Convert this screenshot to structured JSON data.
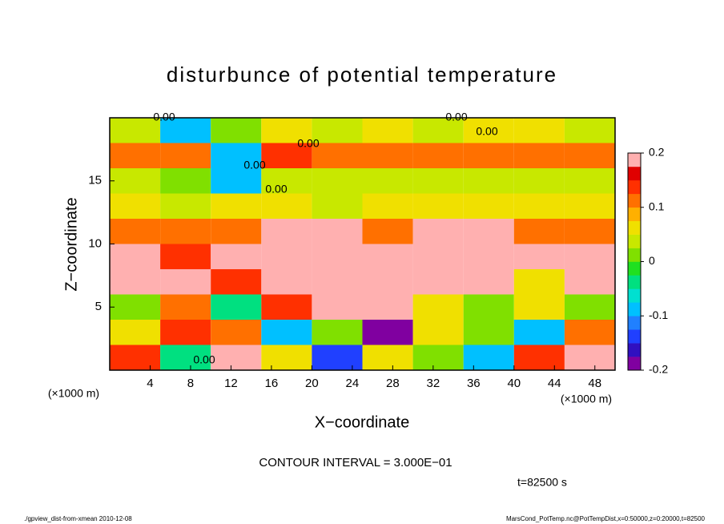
{
  "chart_data": {
    "type": "heatmap",
    "title": "disturbunce of potential temperature",
    "xlabel": "X−coordinate",
    "ylabel": "Z−coordinate",
    "xunit": "(×1000 m)",
    "xunit2": "(×1000 m)",
    "contour_interval": "CONTOUR INTERVAL = 3.000E−01",
    "time": "t=82500 s",
    "footer_left": "./gpview_dist-from-xmean  2010-12-08",
    "footer_right": "MarsCond_PotTemp.nc@PotTempDist,x=0:50000,z=0:20000,t=82500",
    "annotations": [
      "0.00",
      "0.00",
      "0.00",
      "0.00",
      "0.00",
      "0.00",
      "0.00"
    ],
    "x": [
      2.5,
      7.5,
      12.5,
      17.5,
      22.5,
      27.5,
      32.5,
      37.5,
      42.5,
      47.5
    ],
    "y": [
      1,
      3,
      5,
      7,
      9,
      11,
      13,
      15,
      17,
      19
    ],
    "values": [
      [
        0.15,
        -0.05,
        0.2,
        0.05,
        -0.15,
        0.05,
        0.0,
        -0.1,
        0.15,
        0.2
      ],
      [
        0.05,
        0.15,
        0.1,
        -0.1,
        0.0,
        -0.2,
        0.05,
        0.0,
        -0.1,
        0.1
      ],
      [
        0.0,
        0.1,
        -0.05,
        0.15,
        0.2,
        0.2,
        0.05,
        0.0,
        0.05,
        0.0
      ],
      [
        0.2,
        0.2,
        0.15,
        0.2,
        0.2,
        0.2,
        0.2,
        0.2,
        0.05,
        0.2
      ],
      [
        0.2,
        0.15,
        0.2,
        0.2,
        0.2,
        0.2,
        0.2,
        0.2,
        0.2,
        0.2
      ],
      [
        0.12,
        0.12,
        0.1,
        0.2,
        0.2,
        0.12,
        0.2,
        0.2,
        0.12,
        0.12
      ],
      [
        0.05,
        0.03,
        0.05,
        0.05,
        0.03,
        0.05,
        0.05,
        0.05,
        0.05,
        0.05
      ],
      [
        0.03,
        0.0,
        -0.08,
        0.03,
        0.03,
        0.03,
        0.03,
        0.03,
        0.03,
        0.03
      ],
      [
        0.12,
        0.1,
        -0.1,
        0.15,
        0.1,
        0.12,
        0.12,
        0.12,
        0.12,
        0.12
      ],
      [
        0.03,
        -0.1,
        0.0,
        0.05,
        0.03,
        0.05,
        0.03,
        0.05,
        0.05,
        0.03
      ]
    ],
    "xlim": [
      0,
      50
    ],
    "ylim": [
      0,
      20
    ],
    "xticks": [
      4,
      8,
      12,
      16,
      20,
      24,
      28,
      32,
      36,
      40,
      44,
      48
    ],
    "yticks": [
      5,
      10,
      15
    ],
    "clim": [
      -0.2,
      0.2
    ],
    "cticks": [
      -0.2,
      -0.1,
      0,
      0.1,
      0.2
    ],
    "colors": [
      "#8000a0",
      "#3010c0",
      "#2040ff",
      "#2080ff",
      "#00c0ff",
      "#00e0d0",
      "#00e080",
      "#20e020",
      "#80e000",
      "#c8e800",
      "#f0e000",
      "#ffb000",
      "#ff7000",
      "#ff3000",
      "#e00000",
      "#ffb0b0"
    ]
  }
}
